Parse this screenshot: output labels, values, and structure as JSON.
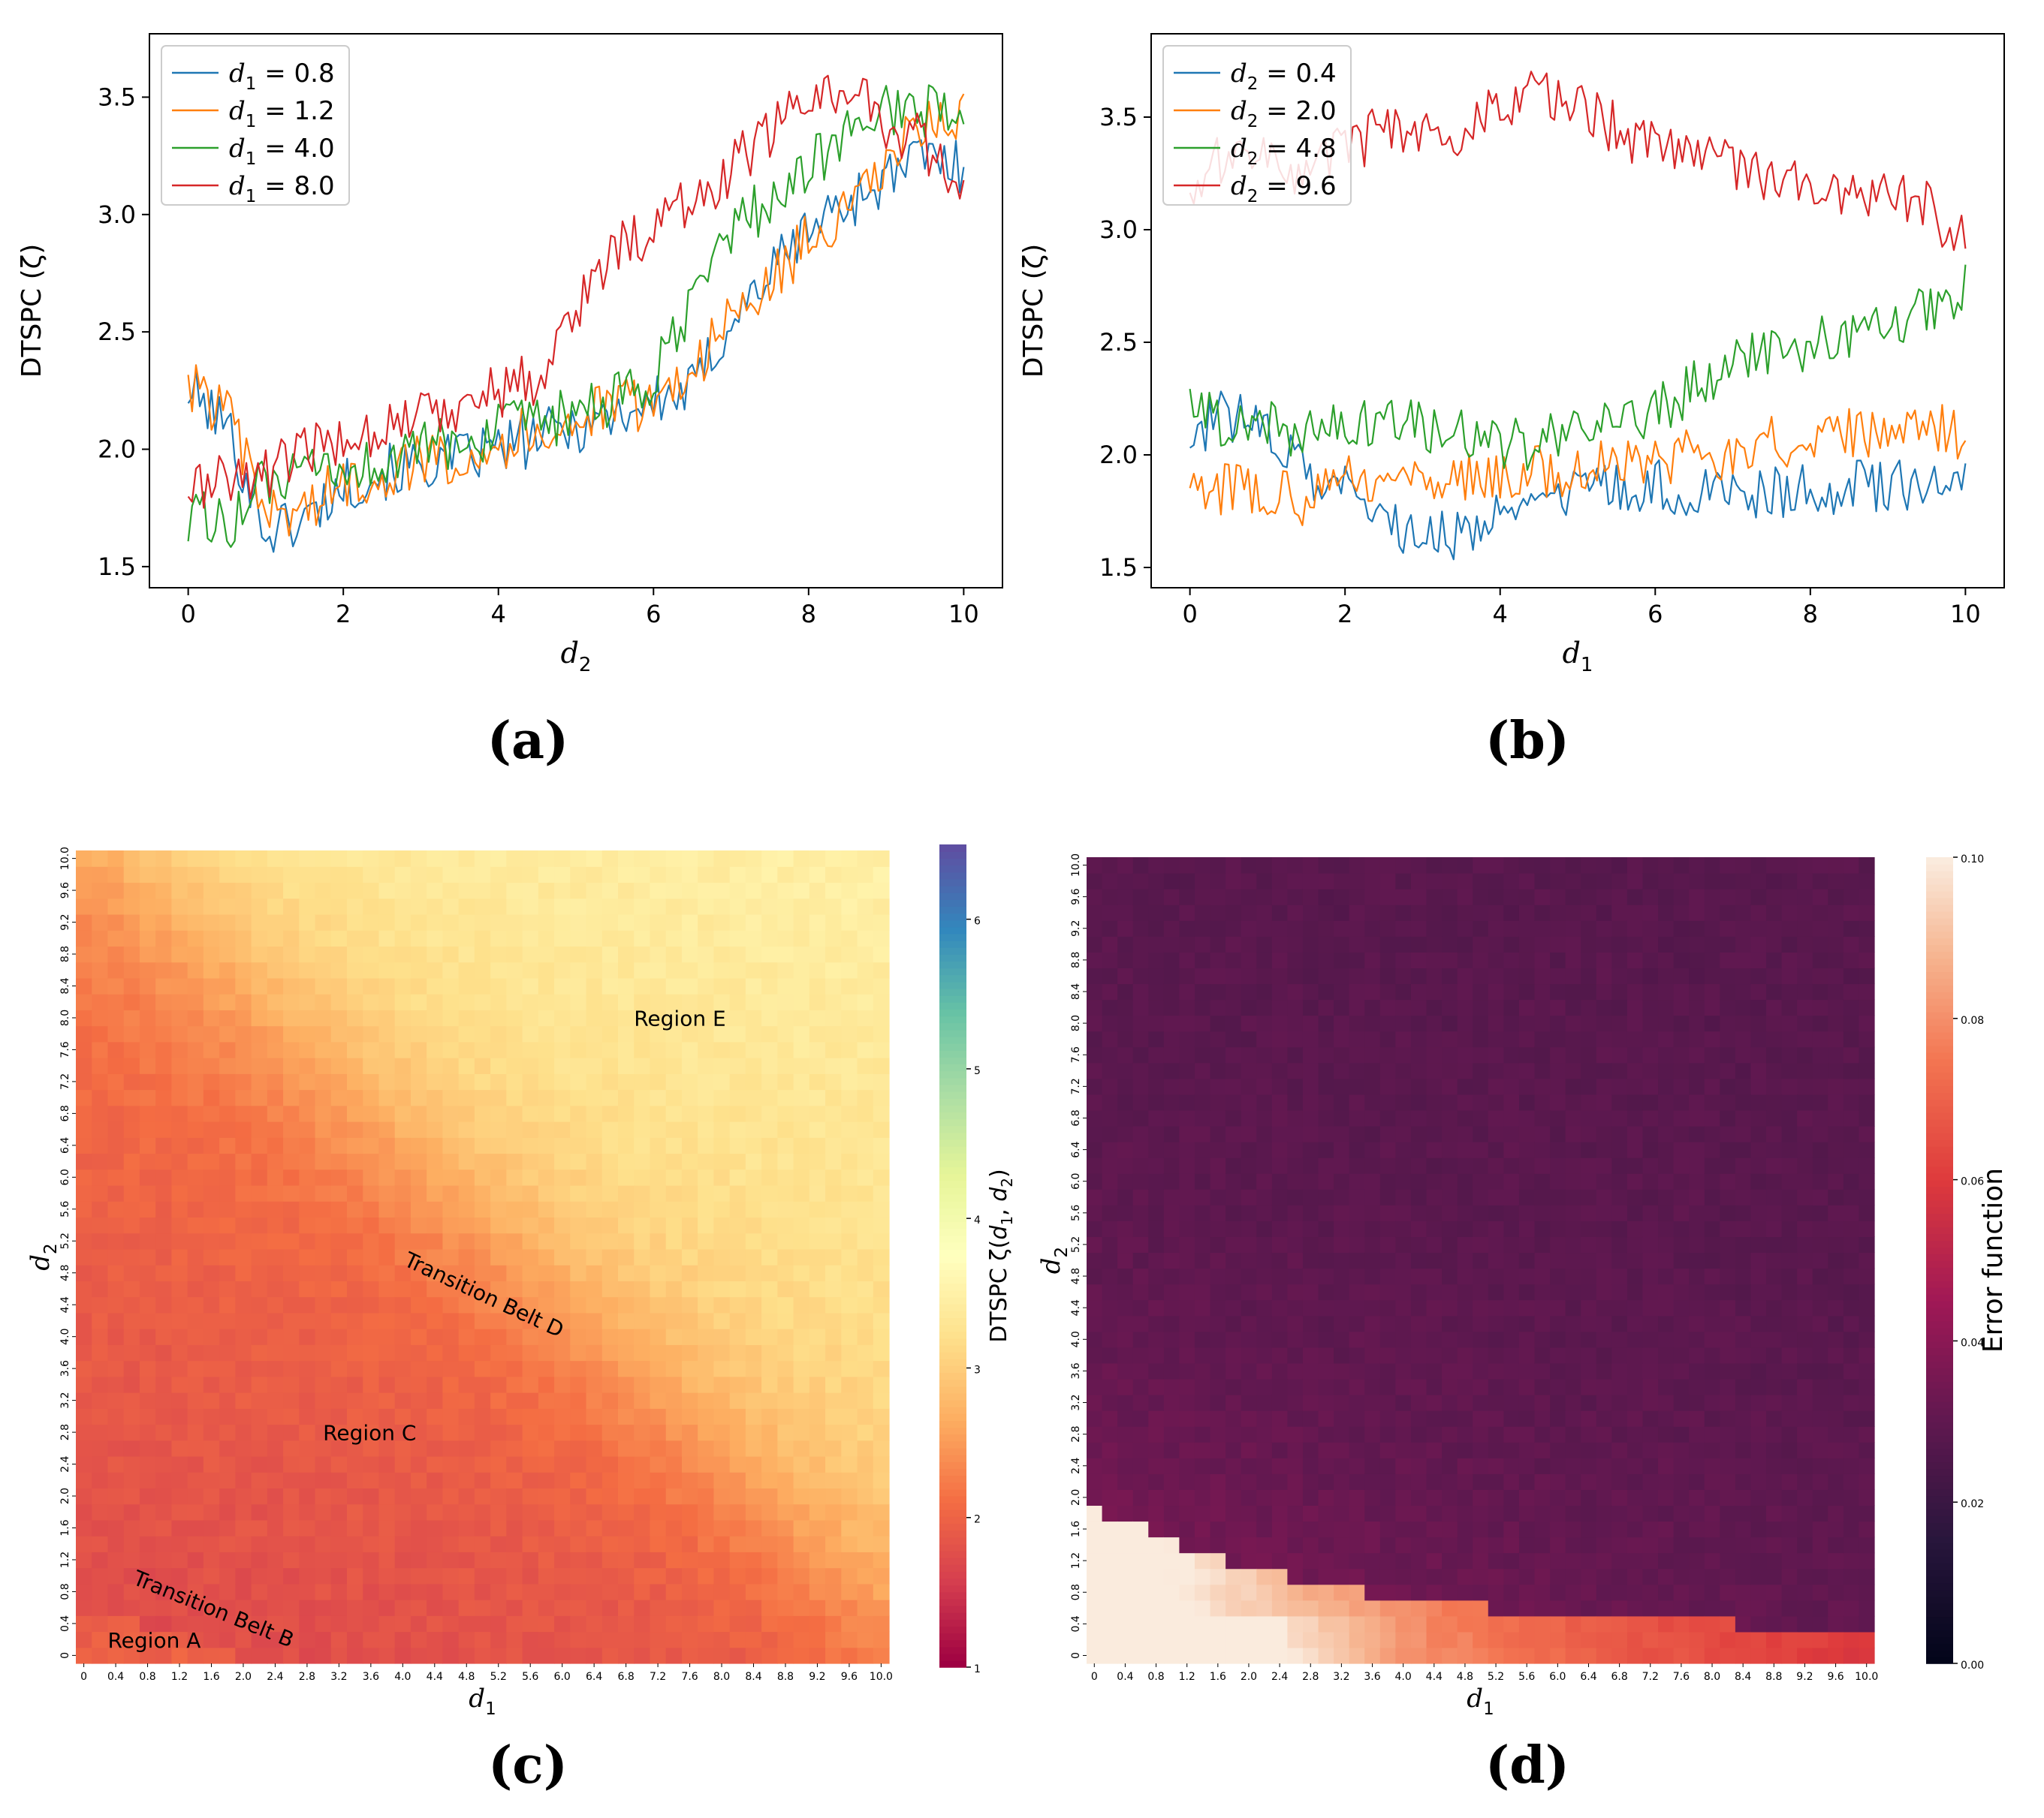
{
  "chart_data": [
    {
      "panel": "(a)",
      "type": "line",
      "xlabel": "d2",
      "ylabel": "DTSPC (ζ)",
      "xlim": [
        -0.5,
        10.5
      ],
      "ylim": [
        1.41,
        3.77
      ],
      "xticks": [
        0,
        2,
        4,
        6,
        8,
        10
      ],
      "yticks": [
        1.5,
        2.0,
        2.5,
        3.0,
        3.5
      ],
      "legend_position": "top-left",
      "series": [
        {
          "name": "d1 = 0.8",
          "legend_sub": "1",
          "legend_value": "0.8",
          "color": "#1f77b4",
          "x": [
            0,
            0.5,
            1,
            1.5,
            2,
            2.5,
            3,
            3.5,
            4,
            4.5,
            5,
            5.5,
            6,
            6.5,
            7,
            7.5,
            8,
            8.5,
            9,
            9.5,
            10
          ],
          "y": [
            2.25,
            2.1,
            1.65,
            1.7,
            1.85,
            1.9,
            1.93,
            1.96,
            2.0,
            2.05,
            2.1,
            2.15,
            2.2,
            2.25,
            2.55,
            2.75,
            2.95,
            3.05,
            3.15,
            3.25,
            3.2
          ]
        },
        {
          "name": "d1 = 1.2",
          "legend_sub": "1",
          "legend_value": "1.2",
          "color": "#ff7f0e",
          "x": [
            0,
            0.5,
            1,
            1.5,
            2,
            2.5,
            3,
            3.5,
            4,
            4.5,
            5,
            5.5,
            6,
            6.5,
            7,
            7.5,
            8,
            8.5,
            9,
            9.5,
            10
          ],
          "y": [
            2.28,
            2.15,
            1.72,
            1.75,
            1.85,
            1.9,
            1.95,
            1.98,
            2.02,
            2.08,
            2.12,
            2.18,
            2.2,
            2.35,
            2.55,
            2.7,
            2.9,
            3.0,
            3.2,
            3.4,
            3.4
          ]
        },
        {
          "name": "d1 = 4.0",
          "legend_sub": "1",
          "legend_value": "4.0",
          "color": "#2ca02c",
          "x": [
            0,
            0.5,
            1,
            1.5,
            2,
            2.5,
            3,
            3.5,
            4,
            4.5,
            5,
            5.5,
            6,
            6.5,
            7,
            7.5,
            8,
            8.5,
            9,
            9.5,
            10
          ],
          "y": [
            1.72,
            1.68,
            1.85,
            1.88,
            1.9,
            1.95,
            2.0,
            2.03,
            2.08,
            2.1,
            2.15,
            2.2,
            2.3,
            2.6,
            2.95,
            3.05,
            3.2,
            3.35,
            3.45,
            3.45,
            3.4
          ]
        },
        {
          "name": "d1 = 8.0",
          "legend_sub": "1",
          "legend_value": "8.0",
          "color": "#d62728",
          "x": [
            0,
            0.5,
            1,
            1.5,
            2,
            2.5,
            3,
            3.5,
            4,
            4.5,
            5,
            5.5,
            6,
            6.5,
            7,
            7.5,
            8,
            8.5,
            9,
            9.5,
            10
          ],
          "y": [
            1.82,
            1.88,
            1.9,
            1.98,
            2.05,
            2.1,
            2.15,
            2.2,
            2.25,
            2.3,
            2.6,
            2.85,
            2.95,
            3.05,
            3.2,
            3.35,
            3.5,
            3.55,
            3.4,
            3.3,
            3.05
          ]
        }
      ],
      "xlabel_var": "d",
      "xlabel_sub": "2",
      "ylabel_text": "DTSPC (ζ)"
    },
    {
      "panel": "(b)",
      "type": "line",
      "xlabel": "d1",
      "ylabel": "DTSPC (ζ)",
      "xlim": [
        -0.5,
        10.5
      ],
      "ylim": [
        1.41,
        3.87
      ],
      "xticks": [
        0,
        2,
        4,
        6,
        8,
        10
      ],
      "yticks": [
        1.5,
        2.0,
        2.5,
        3.0,
        3.5
      ],
      "legend_position": "top-left",
      "series": [
        {
          "name": "d2 = 0.4",
          "legend_sub": "2",
          "legend_value": "0.4",
          "color": "#1f77b4",
          "x": [
            0,
            0.5,
            1,
            1.5,
            2,
            2.5,
            3,
            3.5,
            4,
            4.5,
            5,
            5.5,
            6,
            6.5,
            7,
            7.5,
            8,
            8.5,
            9,
            9.5,
            10
          ],
          "y": [
            2.1,
            2.18,
            2.1,
            1.9,
            1.85,
            1.7,
            1.62,
            1.65,
            1.72,
            1.78,
            1.82,
            1.85,
            1.86,
            1.85,
            1.84,
            1.84,
            1.85,
            1.86,
            1.86,
            1.86,
            1.85
          ]
        },
        {
          "name": "d2 = 2.0",
          "legend_sub": "2",
          "legend_value": "2.0",
          "color": "#ff7f0e",
          "x": [
            0,
            0.5,
            1,
            1.5,
            2,
            2.5,
            3,
            3.5,
            4,
            4.5,
            5,
            5.5,
            6,
            6.5,
            7,
            7.5,
            8,
            8.5,
            9,
            9.5,
            10
          ],
          "y": [
            1.83,
            1.86,
            1.85,
            1.8,
            1.9,
            1.85,
            1.9,
            1.92,
            1.9,
            1.92,
            1.93,
            1.95,
            1.97,
            2.0,
            2.0,
            2.05,
            2.05,
            2.1,
            2.12,
            2.15,
            2.08
          ]
        },
        {
          "name": "d2 = 4.8",
          "legend_sub": "2",
          "legend_value": "4.8",
          "color": "#2ca02c",
          "x": [
            0,
            0.5,
            1,
            1.5,
            2,
            2.5,
            3,
            3.5,
            4,
            4.5,
            5,
            5.5,
            6,
            6.5,
            7,
            7.5,
            8,
            8.5,
            9,
            9.5,
            10
          ],
          "y": [
            2.18,
            2.15,
            2.12,
            2.1,
            2.15,
            2.15,
            2.12,
            2.1,
            2.05,
            2.05,
            2.1,
            2.15,
            2.2,
            2.3,
            2.4,
            2.45,
            2.5,
            2.5,
            2.6,
            2.65,
            2.75
          ]
        },
        {
          "name": "d2 = 9.6",
          "legend_sub": "2",
          "legend_value": "9.6",
          "color": "#d62728",
          "x": [
            0,
            0.5,
            1,
            1.5,
            2,
            2.5,
            3,
            3.5,
            4,
            4.5,
            5,
            5.5,
            6,
            6.5,
            7,
            7.5,
            8,
            8.5,
            9,
            9.5,
            10
          ],
          "y": [
            3.2,
            3.35,
            3.3,
            3.25,
            3.35,
            3.45,
            3.4,
            3.45,
            3.55,
            3.6,
            3.55,
            3.45,
            3.35,
            3.3,
            3.28,
            3.22,
            3.2,
            3.15,
            3.2,
            3.1,
            2.95
          ]
        }
      ],
      "xlabel_var": "d",
      "xlabel_sub": "1",
      "ylabel_text": "DTSPC (ζ)"
    },
    {
      "panel": "(c)",
      "type": "heatmap",
      "xlabel_var": "d",
      "xlabel_sub": "1",
      "ylabel_var": "d",
      "ylabel_sub": "2",
      "grid_n": 51,
      "xtick_labels": [
        "0",
        "0.4",
        "0.8",
        "1.2",
        "1.6",
        "2.0",
        "2.4",
        "2.8",
        "3.2",
        "3.6",
        "4.0",
        "4.4",
        "4.8",
        "5.2",
        "5.6",
        "6.0",
        "6.4",
        "6.8",
        "7.2",
        "7.6",
        "8.0",
        "8.4",
        "8.8",
        "9.2",
        "9.6",
        "10.0"
      ],
      "ytick_labels": [
        "0",
        "0.4",
        "0.8",
        "1.2",
        "1.6",
        "2.0",
        "2.4",
        "2.8",
        "3.2",
        "3.6",
        "4.0",
        "4.4",
        "4.8",
        "5.2",
        "5.6",
        "6.0",
        "6.4",
        "6.8",
        "7.2",
        "7.6",
        "8.0",
        "8.4",
        "8.8",
        "9.2",
        "9.6",
        "10.0"
      ],
      "colorbar": {
        "label": "DTSPC ζ(d1, d2)",
        "label_prefix": "DTSPC ζ(",
        "label_suffix": ")",
        "min": 1,
        "max": 6.5,
        "ticks": [
          1,
          2,
          3,
          4,
          5,
          6
        ],
        "colormap": "Spectral"
      },
      "model": {
        "min_value": 1.65,
        "max_value": 3.2,
        "note": "values rise from lower-left (~1.7) to upper-right (~3.1)"
      },
      "annotations": [
        {
          "text": "Region A",
          "rotation": 0
        },
        {
          "text": "Transition Belt B",
          "rotation": 22
        },
        {
          "text": "Region C",
          "rotation": 0
        },
        {
          "text": "Transition Belt D",
          "rotation": 25
        },
        {
          "text": "Region E",
          "rotation": 0
        }
      ]
    },
    {
      "panel": "(d)",
      "type": "heatmap",
      "xlabel_var": "d",
      "xlabel_sub": "1",
      "ylabel_var": "d",
      "ylabel_sub": "2",
      "grid_n": 51,
      "xtick_labels": [
        "0",
        "0.4",
        "0.8",
        "1.2",
        "1.6",
        "2.0",
        "2.4",
        "2.8",
        "3.2",
        "3.6",
        "4.0",
        "4.4",
        "4.8",
        "5.2",
        "5.6",
        "6.0",
        "6.4",
        "6.8",
        "7.2",
        "7.6",
        "8.0",
        "8.4",
        "8.8",
        "9.2",
        "9.6",
        "10.0"
      ],
      "ytick_labels": [
        "0",
        "0.4",
        "0.8",
        "1.2",
        "1.6",
        "2.0",
        "2.4",
        "2.8",
        "3.2",
        "3.6",
        "4.0",
        "4.4",
        "4.8",
        "5.2",
        "5.6",
        "6.0",
        "6.4",
        "6.8",
        "7.2",
        "7.6",
        "8.0",
        "8.4",
        "8.8",
        "9.2",
        "9.6",
        "10.0"
      ],
      "colorbar": {
        "label": "Error function",
        "min": 0.0,
        "max": 0.1,
        "ticks": [
          "0.00",
          "0.02",
          "0.04",
          "0.06",
          "0.08",
          "0.10"
        ],
        "colormap": "rocket"
      },
      "model": {
        "min_value": 0.025,
        "max_value": 0.095,
        "note": "high error near d2 ≈ 0, decreasing with d1"
      }
    }
  ],
  "panel_labels": [
    "(a)",
    "(b)",
    "(c)",
    "(d)"
  ]
}
